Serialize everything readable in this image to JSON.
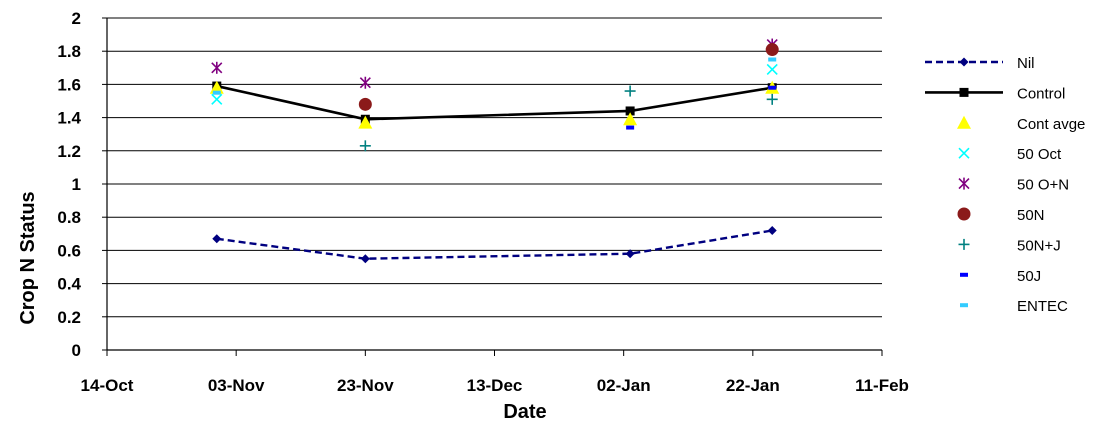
{
  "chart_data": {
    "type": "line",
    "title": "",
    "xlabel": "Date",
    "ylabel": "Crop  N Status",
    "x_ticks": [
      "14-Oct",
      "03-Nov",
      "23-Nov",
      "13-Dec",
      "02-Jan",
      "22-Jan",
      "11-Feb"
    ],
    "y_ticks": [
      "0",
      "0.2",
      "0.4",
      "0.6",
      "0.8",
      "1",
      "1.2",
      "1.4",
      "1.6",
      "1.8",
      "2"
    ],
    "ylim": [
      0,
      2
    ],
    "xlim": [
      "2008-10-14",
      "2009-02-11"
    ],
    "grid": "horizontal",
    "legend_position": "right",
    "series": [
      {
        "name": "Nil",
        "style": "dashed-line-diamond",
        "color": "#000080",
        "points": [
          [
            "2008-10-31",
            0.67
          ],
          [
            "2008-11-23",
            0.55
          ],
          [
            "2009-01-03",
            0.58
          ],
          [
            "2009-01-25",
            0.72
          ]
        ]
      },
      {
        "name": "Control",
        "style": "solid-line-square",
        "color": "#000000",
        "points": [
          [
            "2008-10-31",
            1.59
          ],
          [
            "2008-11-23",
            1.39
          ],
          [
            "2009-01-03",
            1.44
          ],
          [
            "2009-01-25",
            1.58
          ]
        ]
      },
      {
        "name": "Cont avge",
        "style": "triangle",
        "color": "#FFFF00",
        "points": [
          [
            "2008-10-31",
            1.58
          ],
          [
            "2008-11-23",
            1.37
          ],
          [
            "2009-01-03",
            1.39
          ],
          [
            "2009-01-25",
            1.58
          ]
        ]
      },
      {
        "name": "50 Oct",
        "style": "x",
        "color": "#00FFFF",
        "points": [
          [
            "2008-10-31",
            1.51
          ],
          [
            "2009-01-25",
            1.69
          ]
        ]
      },
      {
        "name": "50 O+N",
        "style": "star",
        "color": "#800080",
        "points": [
          [
            "2008-10-31",
            1.7
          ],
          [
            "2008-11-23",
            1.61
          ],
          [
            "2009-01-25",
            1.84
          ]
        ]
      },
      {
        "name": "50N",
        "style": "circle",
        "color": "#8B1A1A",
        "points": [
          [
            "2008-11-23",
            1.48
          ],
          [
            "2009-01-25",
            1.81
          ]
        ]
      },
      {
        "name": "50N+J",
        "style": "plus",
        "color": "#008080",
        "points": [
          [
            "2008-11-23",
            1.23
          ],
          [
            "2009-01-03",
            1.56
          ],
          [
            "2009-01-25",
            1.51
          ]
        ]
      },
      {
        "name": "50J",
        "style": "dash",
        "color": "#0000FF",
        "points": [
          [
            "2009-01-03",
            1.34
          ],
          [
            "2009-01-25",
            1.58
          ]
        ]
      },
      {
        "name": "ENTEC",
        "style": "dash",
        "color": "#33CCFF",
        "points": [
          [
            "2008-10-31",
            1.55
          ],
          [
            "2009-01-25",
            1.75
          ]
        ]
      }
    ]
  }
}
